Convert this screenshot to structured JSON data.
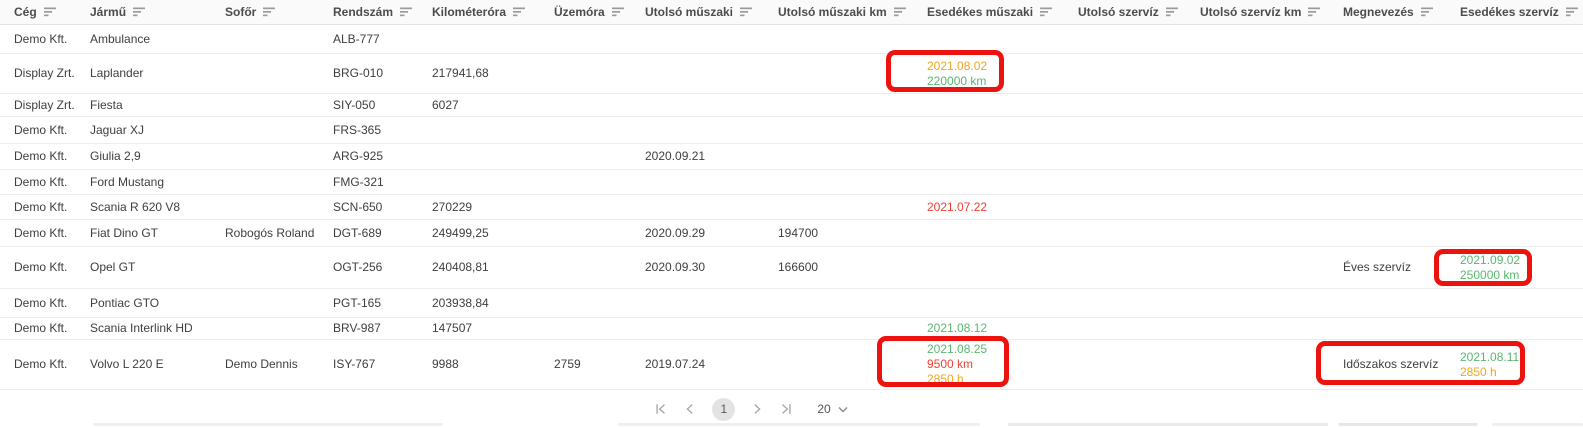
{
  "colors": {
    "green": "#58b86c",
    "orange": "#f2a61d",
    "red": "#f04134",
    "annotation_red": "#ec130e"
  },
  "table": {
    "columns": [
      {
        "key": "ceg",
        "label": "Cég"
      },
      {
        "key": "jarmu",
        "label": "Jármű"
      },
      {
        "key": "sofor",
        "label": "Sofőr"
      },
      {
        "key": "rendszam",
        "label": "Rendszám"
      },
      {
        "key": "kilometerora",
        "label": "Kilométeróra"
      },
      {
        "key": "uzemora",
        "label": "Üzemóra"
      },
      {
        "key": "utolso_muszaki",
        "label": "Utolsó műszaki"
      },
      {
        "key": "utolso_muszaki_km",
        "label": "Utolsó műszaki km"
      },
      {
        "key": "esedekes_muszaki",
        "label": "Esedékes műszaki"
      },
      {
        "key": "utolso_szerviz",
        "label": "Utolsó szervíz"
      },
      {
        "key": "utolso_szerviz_km",
        "label": "Utolsó szervíz km"
      },
      {
        "key": "megnevezes",
        "label": "Megnevezés"
      },
      {
        "key": "esedekes_szerviz",
        "label": "Esedékes szervíz"
      }
    ],
    "rows": [
      {
        "cells": {
          "ceg": "Demo Kft.",
          "jarmu": "Ambulance",
          "rendszam": "ALB-777"
        }
      },
      {
        "cells": {
          "ceg": "Display Zrt.",
          "jarmu": "Laplander",
          "rendszam": "BRG-010",
          "kilometerora": "217941,68",
          "esedekes_muszaki": [
            {
              "t": "2021.08.02",
              "c": "orange"
            },
            {
              "t": "220000 km",
              "c": "green"
            }
          ]
        }
      },
      {
        "cells": {
          "ceg": "Display Zrt.",
          "jarmu": "Fiesta",
          "rendszam": "SIY-050",
          "kilometerora": "6027"
        }
      },
      {
        "cells": {
          "ceg": "Demo Kft.",
          "jarmu": "Jaguar XJ",
          "rendszam": "FRS-365"
        }
      },
      {
        "cells": {
          "ceg": "Demo Kft.",
          "jarmu": "Giulia 2,9",
          "rendszam": "ARG-925",
          "utolso_muszaki": "2020.09.21"
        }
      },
      {
        "cells": {
          "ceg": "Demo Kft.",
          "jarmu": "Ford Mustang",
          "rendszam": "FMG-321"
        }
      },
      {
        "cells": {
          "ceg": "Demo Kft.",
          "jarmu": "Scania R 620 V8",
          "rendszam": "SCN-650",
          "kilometerora": "270229",
          "esedekes_muszaki": [
            {
              "t": "2021.07.22",
              "c": "red"
            }
          ]
        }
      },
      {
        "cells": {
          "ceg": "Demo Kft.",
          "jarmu": "Fiat Dino GT",
          "sofor": "Robogós Roland",
          "rendszam": "DGT-689",
          "kilometerora": "249499,25",
          "utolso_muszaki": "2020.09.29",
          "utolso_muszaki_km": "194700"
        }
      },
      {
        "cells": {
          "ceg": "Demo Kft.",
          "jarmu": "Opel GT",
          "rendszam": "OGT-256",
          "kilometerora": "240408,81",
          "utolso_muszaki": "2020.09.30",
          "utolso_muszaki_km": "166600",
          "megnevezes": "Éves szervíz",
          "esedekes_szerviz": [
            {
              "t": "2021.09.02",
              "c": "green"
            },
            {
              "t": "250000 km",
              "c": "green"
            }
          ]
        }
      },
      {
        "cells": {
          "ceg": "Demo Kft.",
          "jarmu": "Pontiac GTO",
          "rendszam": "PGT-165",
          "kilometerora": "203938,84"
        }
      },
      {
        "cells": {
          "ceg": "Demo Kft.",
          "jarmu": "Scania Interlink HD",
          "rendszam": "BRV-987",
          "kilometerora": "147507",
          "esedekes_muszaki": [
            {
              "t": "2021.08.12",
              "c": "green"
            }
          ]
        }
      },
      {
        "cells": {
          "ceg": "Demo Kft.",
          "jarmu": "Volvo L 220 E",
          "sofor": "Demo Dennis",
          "rendszam": "ISY-767",
          "kilometerora": "9988",
          "uzemora": "2759",
          "utolso_muszaki": "2019.07.24",
          "esedekes_muszaki": [
            {
              "t": "2021.08.25",
              "c": "green"
            },
            {
              "t": "9500 km",
              "c": "red"
            },
            {
              "t": "2850 h",
              "c": "orange"
            }
          ],
          "megnevezes": "Időszakos szervíz",
          "esedekes_szerviz": [
            {
              "t": "2021.08.11",
              "c": "green"
            },
            {
              "t": "2850 h",
              "c": "orange"
            }
          ]
        }
      }
    ]
  },
  "pagination": {
    "page": "1",
    "page_size": "20"
  },
  "annotations": [
    {
      "target": "laplander-esedekes-muszaki"
    },
    {
      "target": "opel-esedekes-szerviz"
    },
    {
      "target": "volvo-esedekes-muszaki"
    },
    {
      "target": "volvo-megnevezes-esedekes-szerviz"
    }
  ]
}
